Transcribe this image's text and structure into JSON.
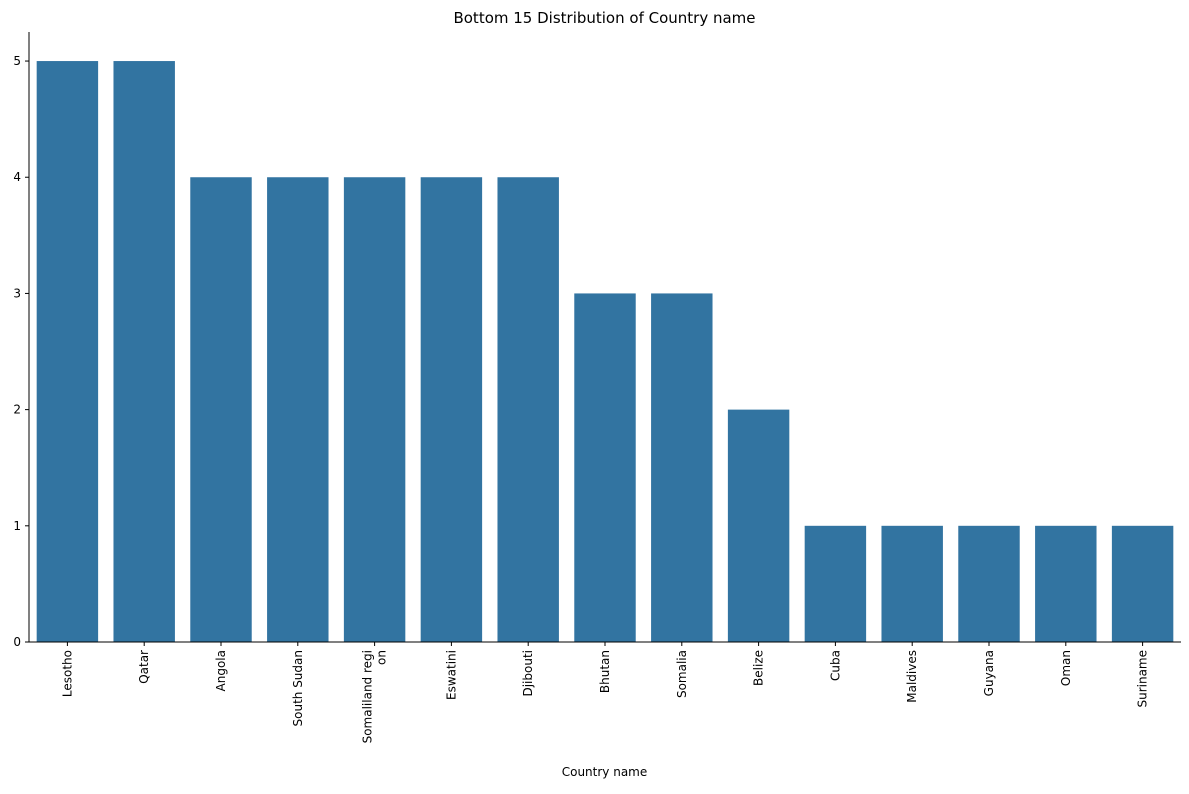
{
  "chart_data": {
    "type": "bar",
    "title": "Bottom 15 Distribution of Country name",
    "xlabel": "Country name",
    "ylabel": "",
    "categories": [
      "Lesotho",
      "Qatar",
      "Angola",
      "South Sudan",
      "Somaliland regi\non",
      "Eswatini",
      "Djibouti",
      "Bhutan",
      "Somalia",
      "Belize",
      "Cuba",
      "Maldives",
      "Guyana",
      "Oman",
      "Suriname"
    ],
    "values": [
      5,
      5,
      4,
      4,
      4,
      4,
      4,
      3,
      3,
      2,
      1,
      1,
      1,
      1,
      1
    ],
    "ylim": [
      0,
      5.25
    ],
    "yticks": [
      0,
      1,
      2,
      3,
      4,
      5
    ],
    "bar_color": "#3274a1",
    "grid": false,
    "legend": "none"
  }
}
